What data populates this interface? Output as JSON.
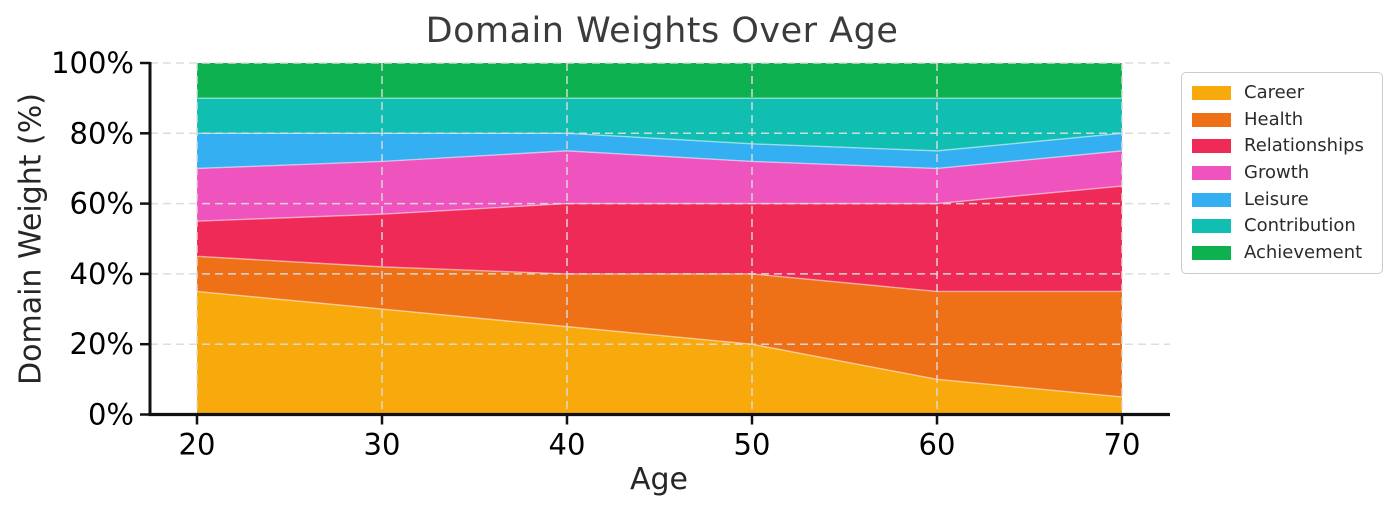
{
  "chart_data": {
    "type": "area",
    "stacked": true,
    "units": "percent",
    "title": "Domain Weights Over Age",
    "xlabel": "Age",
    "ylabel": "Domain Weight (%)",
    "x": [
      20,
      30,
      40,
      50,
      60,
      70
    ],
    "x_tick_labels": [
      "20",
      "30",
      "40",
      "50",
      "60",
      "70"
    ],
    "y_ticks": [
      0,
      20,
      40,
      60,
      80,
      100
    ],
    "y_tick_labels": [
      "0%",
      "20%",
      "40%",
      "60%",
      "80%",
      "100%"
    ],
    "ylim": [
      0,
      100
    ],
    "grid": "dashed",
    "legend_position": "outside-upper-right",
    "series": [
      {
        "name": "Career",
        "color": "#F8A90C",
        "values": [
          35,
          30,
          25,
          20,
          10,
          5
        ]
      },
      {
        "name": "Health",
        "color": "#EE7118",
        "values": [
          10,
          12,
          15,
          20,
          25,
          30
        ]
      },
      {
        "name": "Relationships",
        "color": "#F02A56",
        "values": [
          10,
          15,
          20,
          20,
          25,
          30
        ]
      },
      {
        "name": "Growth",
        "color": "#EF53BE",
        "values": [
          15,
          15,
          15,
          12,
          10,
          10
        ]
      },
      {
        "name": "Leisure",
        "color": "#33AFF2",
        "values": [
          10,
          8,
          5,
          5,
          5,
          5
        ]
      },
      {
        "name": "Contribution",
        "color": "#10BFB2",
        "values": [
          10,
          10,
          10,
          13,
          15,
          10
        ]
      },
      {
        "name": "Achievement",
        "color": "#0EB150",
        "values": [
          10,
          10,
          10,
          10,
          10,
          10
        ]
      }
    ]
  }
}
